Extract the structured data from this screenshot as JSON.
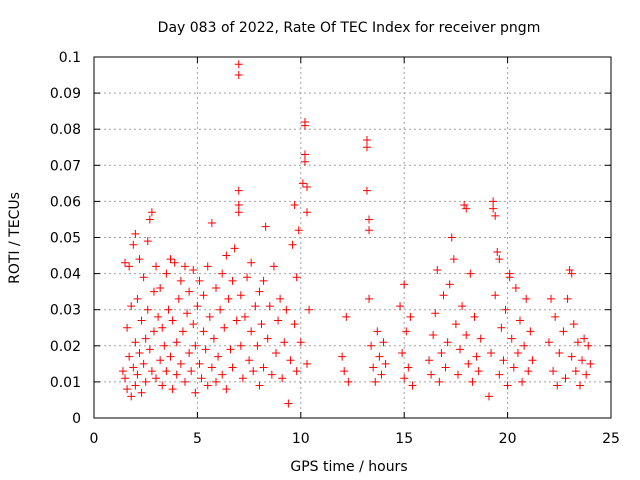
{
  "chart_data": {
    "type": "scatter",
    "title": "Day 083 of 2022, Rate Of TEC Index for receiver pngm",
    "xlabel": "GPS time / hours",
    "ylabel": "ROTI / TECUs",
    "xlim": [
      0,
      25
    ],
    "ylim": [
      0,
      0.1
    ],
    "xticks": [
      0,
      5,
      10,
      15,
      20,
      25
    ],
    "yticks": [
      0,
      0.01,
      0.02,
      0.03,
      0.04,
      0.05,
      0.06,
      0.07,
      0.08,
      0.09,
      0.1
    ],
    "xtick_labels": [
      "0",
      "5",
      "10",
      "15",
      "20",
      "25"
    ],
    "ytick_labels": [
      "0",
      "0.01",
      "0.02",
      "0.03",
      "0.04",
      "0.05",
      "0.06",
      "0.07",
      "0.08",
      "0.09",
      "0.1"
    ],
    "grid": true,
    "legend": "none",
    "marker": "plus",
    "color": "#ff0000",
    "series": [
      {
        "points": [
          [
            1.4,
            0.013
          ],
          [
            1.5,
            0.011
          ],
          [
            1.5,
            0.043
          ],
          [
            1.6,
            0.025
          ],
          [
            1.6,
            0.008
          ],
          [
            1.7,
            0.017
          ],
          [
            1.7,
            0.042
          ],
          [
            1.8,
            0.006
          ],
          [
            1.8,
            0.031
          ],
          [
            1.9,
            0.014
          ],
          [
            1.9,
            0.048
          ],
          [
            2.0,
            0.051
          ],
          [
            2.0,
            0.009
          ],
          [
            2.0,
            0.021
          ],
          [
            2.1,
            0.012
          ],
          [
            2.1,
            0.033
          ],
          [
            2.2,
            0.018
          ],
          [
            2.2,
            0.044
          ],
          [
            2.3,
            0.007
          ],
          [
            2.3,
            0.027
          ],
          [
            2.4,
            0.015
          ],
          [
            2.4,
            0.039
          ],
          [
            2.5,
            0.022
          ],
          [
            2.5,
            0.01
          ],
          [
            2.6,
            0.03
          ],
          [
            2.6,
            0.049
          ],
          [
            2.7,
            0.019
          ],
          [
            2.7,
            0.055
          ],
          [
            2.8,
            0.057
          ],
          [
            2.8,
            0.013
          ],
          [
            2.9,
            0.035
          ],
          [
            2.9,
            0.024
          ],
          [
            3.0,
            0.011
          ],
          [
            3.0,
            0.042
          ],
          [
            3.1,
            0.028
          ],
          [
            3.2,
            0.016
          ],
          [
            3.2,
            0.036
          ],
          [
            3.3,
            0.009
          ],
          [
            3.3,
            0.025
          ],
          [
            3.4,
            0.02
          ],
          [
            3.5,
            0.04
          ],
          [
            3.5,
            0.013
          ],
          [
            3.6,
            0.03
          ],
          [
            3.7,
            0.044
          ],
          [
            3.7,
            0.017
          ],
          [
            3.8,
            0.008
          ],
          [
            3.8,
            0.027
          ],
          [
            3.9,
            0.043
          ],
          [
            4.0,
            0.021
          ],
          [
            4.0,
            0.012
          ],
          [
            4.1,
            0.033
          ],
          [
            4.2,
            0.038
          ],
          [
            4.2,
            0.015
          ],
          [
            4.3,
            0.024
          ],
          [
            4.4,
            0.01
          ],
          [
            4.4,
            0.042
          ],
          [
            4.5,
            0.029
          ],
          [
            4.6,
            0.018
          ],
          [
            4.6,
            0.035
          ],
          [
            4.7,
            0.013
          ],
          [
            4.8,
            0.026
          ],
          [
            4.8,
            0.041
          ],
          [
            4.9,
            0.007
          ],
          [
            4.9,
            0.02
          ],
          [
            5.0,
            0.031
          ],
          [
            5.1,
            0.015
          ],
          [
            5.1,
            0.038
          ],
          [
            5.2,
            0.011
          ],
          [
            5.3,
            0.024
          ],
          [
            5.3,
            0.034
          ],
          [
            5.4,
            0.019
          ],
          [
            5.5,
            0.009
          ],
          [
            5.5,
            0.042
          ],
          [
            5.6,
            0.028
          ],
          [
            5.7,
            0.054
          ],
          [
            5.7,
            0.014
          ],
          [
            5.8,
            0.022
          ],
          [
            5.9,
            0.036
          ],
          [
            5.9,
            0.01
          ],
          [
            6.0,
            0.017
          ],
          [
            6.1,
            0.03
          ],
          [
            6.2,
            0.04
          ],
          [
            6.2,
            0.012
          ],
          [
            6.3,
            0.025
          ],
          [
            6.4,
            0.045
          ],
          [
            6.4,
            0.008
          ],
          [
            6.5,
            0.033
          ],
          [
            6.6,
            0.019
          ],
          [
            6.7,
            0.038
          ],
          [
            6.7,
            0.014
          ],
          [
            6.8,
            0.047
          ],
          [
            6.9,
            0.027
          ],
          [
            7.0,
            0.098
          ],
          [
            7.0,
            0.095
          ],
          [
            7.0,
            0.063
          ],
          [
            7.0,
            0.059
          ],
          [
            7.0,
            0.057
          ],
          [
            7.1,
            0.02
          ],
          [
            7.1,
            0.034
          ],
          [
            7.2,
            0.011
          ],
          [
            7.3,
            0.028
          ],
          [
            7.4,
            0.039
          ],
          [
            7.5,
            0.016
          ],
          [
            7.6,
            0.024
          ],
          [
            7.6,
            0.043
          ],
          [
            7.7,
            0.013
          ],
          [
            7.8,
            0.031
          ],
          [
            7.9,
            0.02
          ],
          [
            8.0,
            0.009
          ],
          [
            8.0,
            0.035
          ],
          [
            8.1,
            0.026
          ],
          [
            8.2,
            0.038
          ],
          [
            8.2,
            0.014
          ],
          [
            8.3,
            0.053
          ],
          [
            8.4,
            0.022
          ],
          [
            8.5,
            0.031
          ],
          [
            8.6,
            0.012
          ],
          [
            8.7,
            0.042
          ],
          [
            8.8,
            0.018
          ],
          [
            8.9,
            0.027
          ],
          [
            9.0,
            0.033
          ],
          [
            9.1,
            0.011
          ],
          [
            9.2,
            0.021
          ],
          [
            9.3,
            0.03
          ],
          [
            9.4,
            0.004
          ],
          [
            9.5,
            0.016
          ],
          [
            9.6,
            0.048
          ],
          [
            9.7,
            0.059
          ],
          [
            9.7,
            0.026
          ],
          [
            9.8,
            0.013
          ],
          [
            9.8,
            0.039
          ],
          [
            9.9,
            0.052
          ],
          [
            10.0,
            0.021
          ],
          [
            10.1,
            0.065
          ],
          [
            10.2,
            0.082
          ],
          [
            10.2,
            0.081
          ],
          [
            10.2,
            0.073
          ],
          [
            10.2,
            0.071
          ],
          [
            10.3,
            0.064
          ],
          [
            10.3,
            0.057
          ],
          [
            10.3,
            0.015
          ],
          [
            10.4,
            0.03
          ],
          [
            12.0,
            0.017
          ],
          [
            12.1,
            0.013
          ],
          [
            12.2,
            0.028
          ],
          [
            12.3,
            0.01
          ],
          [
            13.2,
            0.077
          ],
          [
            13.2,
            0.075
          ],
          [
            13.2,
            0.063
          ],
          [
            13.3,
            0.055
          ],
          [
            13.3,
            0.052
          ],
          [
            13.3,
            0.033
          ],
          [
            13.4,
            0.02
          ],
          [
            13.5,
            0.014
          ],
          [
            13.6,
            0.01
          ],
          [
            13.7,
            0.024
          ],
          [
            13.8,
            0.017
          ],
          [
            13.9,
            0.012
          ],
          [
            14.0,
            0.021
          ],
          [
            14.1,
            0.015
          ],
          [
            14.8,
            0.031
          ],
          [
            14.9,
            0.018
          ],
          [
            15.0,
            0.011
          ],
          [
            15.0,
            0.037
          ],
          [
            15.1,
            0.024
          ],
          [
            15.2,
            0.014
          ],
          [
            15.3,
            0.028
          ],
          [
            15.4,
            0.009
          ],
          [
            16.2,
            0.016
          ],
          [
            16.3,
            0.012
          ],
          [
            16.4,
            0.023
          ],
          [
            16.5,
            0.029
          ],
          [
            16.6,
            0.041
          ],
          [
            16.7,
            0.01
          ],
          [
            16.8,
            0.018
          ],
          [
            16.9,
            0.034
          ],
          [
            17.0,
            0.014
          ],
          [
            17.1,
            0.021
          ],
          [
            17.2,
            0.037
          ],
          [
            17.3,
            0.05
          ],
          [
            17.4,
            0.044
          ],
          [
            17.5,
            0.026
          ],
          [
            17.6,
            0.012
          ],
          [
            17.7,
            0.019
          ],
          [
            17.8,
            0.031
          ],
          [
            17.9,
            0.059
          ],
          [
            18.0,
            0.058
          ],
          [
            18.0,
            0.023
          ],
          [
            18.1,
            0.015
          ],
          [
            18.2,
            0.04
          ],
          [
            18.3,
            0.01
          ],
          [
            18.4,
            0.028
          ],
          [
            18.5,
            0.017
          ],
          [
            18.6,
            0.013
          ],
          [
            18.7,
            0.022
          ],
          [
            19.1,
            0.006
          ],
          [
            19.2,
            0.018
          ],
          [
            19.3,
            0.06
          ],
          [
            19.3,
            0.058
          ],
          [
            19.4,
            0.056
          ],
          [
            19.4,
            0.034
          ],
          [
            19.5,
            0.046
          ],
          [
            19.6,
            0.044
          ],
          [
            19.6,
            0.012
          ],
          [
            19.7,
            0.025
          ],
          [
            19.8,
            0.016
          ],
          [
            19.9,
            0.03
          ],
          [
            20.0,
            0.009
          ],
          [
            20.1,
            0.04
          ],
          [
            20.1,
            0.039
          ],
          [
            20.2,
            0.022
          ],
          [
            20.3,
            0.014
          ],
          [
            20.4,
            0.036
          ],
          [
            20.5,
            0.018
          ],
          [
            20.6,
            0.027
          ],
          [
            20.7,
            0.01
          ],
          [
            20.8,
            0.02
          ],
          [
            20.9,
            0.033
          ],
          [
            21.0,
            0.013
          ],
          [
            21.1,
            0.024
          ],
          [
            21.2,
            0.016
          ],
          [
            22.0,
            0.021
          ],
          [
            22.1,
            0.033
          ],
          [
            22.2,
            0.013
          ],
          [
            22.3,
            0.028
          ],
          [
            22.4,
            0.009
          ],
          [
            22.5,
            0.018
          ],
          [
            22.7,
            0.024
          ],
          [
            22.8,
            0.011
          ],
          [
            22.9,
            0.033
          ],
          [
            23.0,
            0.041
          ],
          [
            23.1,
            0.04
          ],
          [
            23.1,
            0.017
          ],
          [
            23.2,
            0.026
          ],
          [
            23.3,
            0.013
          ],
          [
            23.4,
            0.021
          ],
          [
            23.5,
            0.009
          ],
          [
            23.6,
            0.016
          ],
          [
            23.7,
            0.022
          ],
          [
            23.8,
            0.012
          ],
          [
            23.9,
            0.02
          ],
          [
            24.0,
            0.015
          ]
        ]
      }
    ]
  }
}
